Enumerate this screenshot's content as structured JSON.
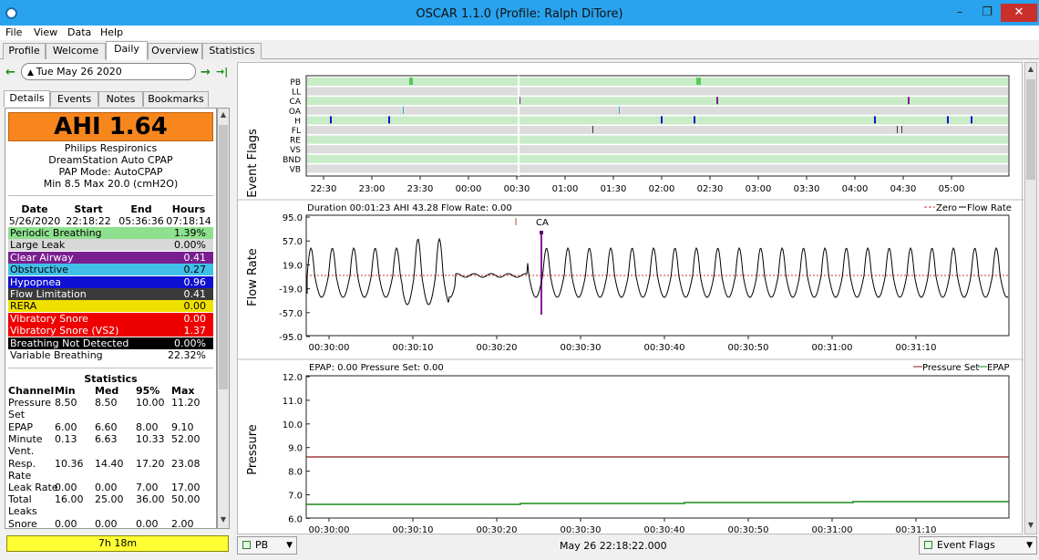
{
  "window": {
    "title": "OSCAR 1.1.0 (Profile: Ralph DiTore)",
    "minimize": "–",
    "maximize": "❐",
    "close": "✕"
  },
  "menu": [
    "File",
    "View",
    "Data",
    "Help"
  ],
  "main_tabs": [
    "Profile",
    "Welcome",
    "Daily",
    "Overview",
    "Statistics"
  ],
  "active_tab": "Daily",
  "date_nav": {
    "prev": "←",
    "date": "Tue May 26 2020",
    "next": "→",
    "latest": "→|"
  },
  "side_tabs": [
    "Details",
    "Events",
    "Notes",
    "Bookmarks"
  ],
  "summary": {
    "ahi": "AHI 1.64",
    "device": [
      "Philips Respironics",
      "DreamStation Auto CPAP",
      "PAP Mode: AutoCPAP",
      "Min 8.5 Max 20.0 (cmH2O)"
    ],
    "session_headers": [
      "Date",
      "Start",
      "End",
      "Hours"
    ],
    "session_values": [
      "5/26/2020",
      "22:18:22",
      "05:36:36",
      "07:18:14"
    ]
  },
  "events": [
    {
      "name": "Periodic Breathing",
      "value": "1.39%",
      "color": "#8ee08e",
      "text": "#000"
    },
    {
      "name": "Large Leak",
      "value": "0.00%",
      "color": "#d8d8d8",
      "text": "#000"
    },
    {
      "name": "Clear Airway",
      "value": "0.41",
      "color": "#7a1f8f",
      "text": "#ffffff"
    },
    {
      "name": "Obstructive",
      "value": "0.27",
      "color": "#40c0e8",
      "text": "#000"
    },
    {
      "name": "Hypopnea",
      "value": "0.96",
      "color": "#1010d0",
      "text": "#ffffff"
    },
    {
      "name": "Flow Limitation",
      "value": "0.41",
      "color": "#3a3a3a",
      "text": "#ffffff"
    },
    {
      "name": "RERA",
      "value": "0.00",
      "color": "#f0e000",
      "text": "#000"
    },
    {
      "name": "Vibratory Snore",
      "value": "0.00",
      "color": "#ee0000",
      "text": "#ffffff"
    },
    {
      "name": "Vibratory Snore (VS2)",
      "value": "1.37",
      "color": "#ee0000",
      "text": "#ffffff"
    },
    {
      "name": "Breathing Not Detected",
      "value": "0.00%",
      "color": "#000000",
      "text": "#ffffff"
    },
    {
      "name": "Variable Breathing",
      "value": "22.32%",
      "color": "#ffffff",
      "text": "#000"
    }
  ],
  "statistics": {
    "title": "Statistics",
    "headers": [
      "Channel",
      "Min",
      "Med",
      "95%",
      "Max"
    ],
    "rows": [
      {
        "label": [
          "Pressure",
          "Set"
        ],
        "values": [
          "8.50",
          "8.50",
          "10.00",
          "11.20"
        ]
      },
      {
        "label": [
          "EPAP"
        ],
        "values": [
          "6.00",
          "6.60",
          "8.00",
          "9.10"
        ]
      },
      {
        "label": [
          "Minute",
          "Vent."
        ],
        "values": [
          "0.13",
          "6.63",
          "10.33",
          "52.00"
        ]
      },
      {
        "label": [
          "Resp.",
          "Rate"
        ],
        "values": [
          "10.36",
          "14.40",
          "17.20",
          "23.08"
        ]
      },
      {
        "label": [
          "Leak Rate"
        ],
        "values": [
          "0.00",
          "0.00",
          "7.00",
          "17.00"
        ]
      },
      {
        "label": [
          "Total",
          "Leaks"
        ],
        "values": [
          "16.00",
          "25.00",
          "36.00",
          "50.00"
        ]
      },
      {
        "label": [
          "Snore"
        ],
        "values": [
          "0.00",
          "0.00",
          "0.00",
          "2.00"
        ]
      }
    ]
  },
  "duration": "7h 18m",
  "graphs": {
    "event_flags": {
      "ylabel": "Event Flags",
      "labels": [
        "PB",
        "LL",
        "CA",
        "OA",
        "H",
        "FL",
        "RE",
        "VS",
        "BND",
        "VB"
      ],
      "times": [
        "22:30",
        "23:00",
        "23:30",
        "00:00",
        "00:30",
        "01:00",
        "01:30",
        "02:00",
        "02:30",
        "03:00",
        "03:30",
        "04:00",
        "04:30",
        "05:00"
      ]
    },
    "flow_rate": {
      "ylabel": "Flow Rate",
      "info": "Duration 00:01:23 AHI 43.28 Flow Rate: 0.00",
      "legend": [
        "Zero",
        "Flow Rate"
      ],
      "event_marker": "CA",
      "yticks": [
        "95.0",
        "57.0",
        "19.0",
        "-19.0",
        "-57.0",
        "-95.0"
      ],
      "times": [
        "00:30:00",
        "00:30:10",
        "00:30:20",
        "00:30:30",
        "00:30:40",
        "00:30:50",
        "00:31:00",
        "00:31:10"
      ]
    },
    "pressure": {
      "ylabel": "Pressure",
      "info": "EPAP: 0.00 Pressure Set: 0.00",
      "legend": [
        "Pressure Set",
        "EPAP"
      ],
      "yticks": [
        "12.0",
        "11.0",
        "10.0",
        "9.0",
        "8.0",
        "7.0",
        "6.0"
      ],
      "times": [
        "00:30:00",
        "00:30:10",
        "00:30:20",
        "00:30:30",
        "00:30:40",
        "00:30:50",
        "00:31:00",
        "00:31:10"
      ]
    }
  },
  "bottom": {
    "left_combo": "PB",
    "center_time": "May 26 22:18:22.000",
    "right_combo": "Event Flags"
  }
}
